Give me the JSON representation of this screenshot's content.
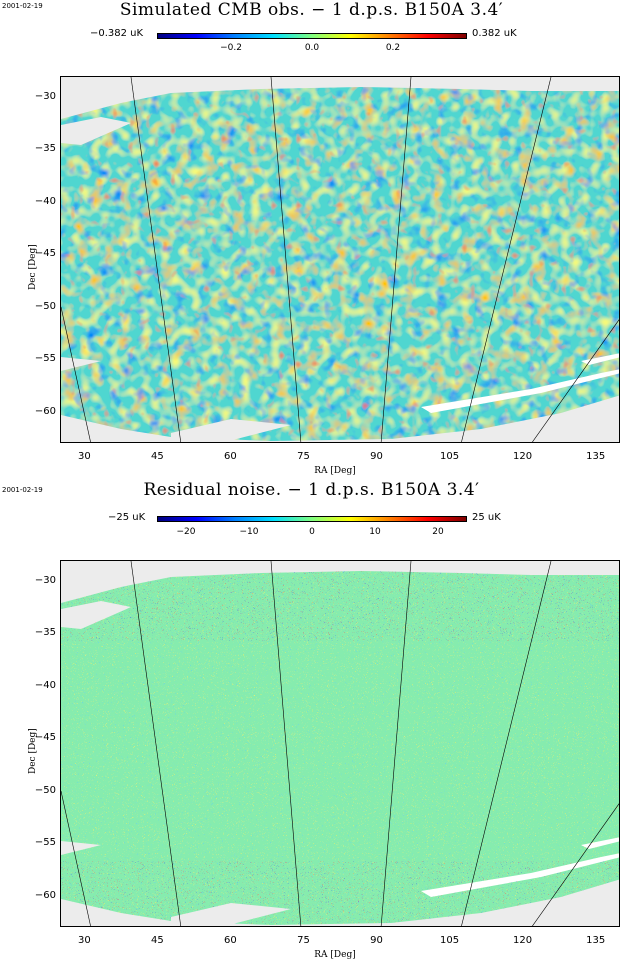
{
  "chart_data": [
    {
      "type": "heatmap",
      "date": "2001-02-19",
      "title": "Simulated CMB obs. − 1 d.p.s. B150A 3.4′",
      "colorbar": {
        "min_label": "−0.382 uK",
        "max_label": "0.382 uK",
        "ticks": [
          "−0.2",
          "0.0",
          "0.2"
        ],
        "tick_values": [
          -0.2,
          0.0,
          0.2
        ],
        "range": [
          -0.382,
          0.382
        ]
      },
      "xlabel": "RA [Deg]",
      "ylabel": "Dec [Deg]",
      "xticks": [
        "30",
        "45",
        "60",
        "75",
        "90",
        "105",
        "120",
        "135"
      ],
      "xtick_values": [
        30,
        45,
        60,
        75,
        90,
        105,
        120,
        135
      ],
      "yticks": [
        "−30",
        "−35",
        "−40",
        "−45",
        "−50",
        "−55",
        "−60"
      ],
      "ytick_values": [
        -30,
        -35,
        -40,
        -45,
        -50,
        -55,
        -60
      ],
      "xlim": [
        25,
        140
      ],
      "ylim": [
        -63,
        -28
      ]
    },
    {
      "type": "heatmap",
      "date": "2001-02-19",
      "title": "Residual noise. − 1 d.p.s. B150A 3.4′",
      "colorbar": {
        "min_label": "−25 uK",
        "max_label": "25 uK",
        "ticks": [
          "−20",
          "−10",
          "0",
          "10",
          "20"
        ],
        "tick_values": [
          -20,
          -10,
          0,
          10,
          20
        ],
        "range": [
          -25,
          25
        ]
      },
      "xlabel": "RA [Deg]",
      "ylabel": "Dec [Deg]",
      "xticks": [
        "30",
        "45",
        "60",
        "75",
        "90",
        "105",
        "120",
        "135"
      ],
      "xtick_values": [
        30,
        45,
        60,
        75,
        90,
        105,
        120,
        135
      ],
      "yticks": [
        "−30",
        "−35",
        "−40",
        "−45",
        "−50",
        "−55",
        "−60"
      ],
      "ytick_values": [
        -30,
        -35,
        -40,
        -45,
        -50,
        -55,
        -60
      ],
      "xlim": [
        25,
        140
      ],
      "ylim": [
        -63,
        -28
      ]
    }
  ]
}
